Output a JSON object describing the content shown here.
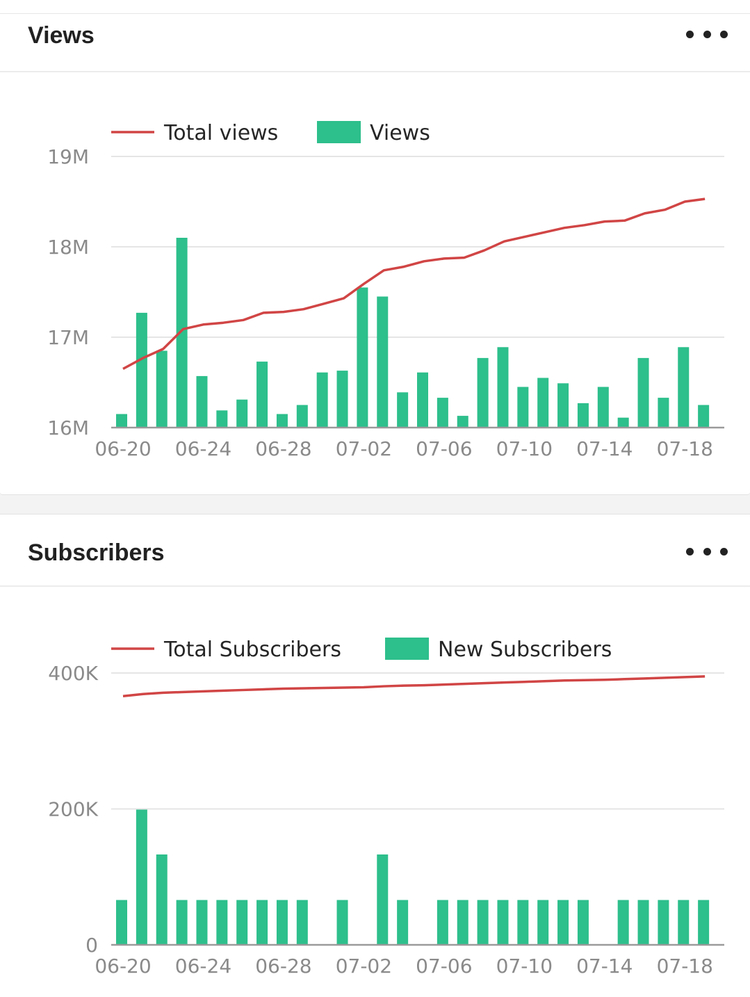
{
  "views_card": {
    "title": "Views",
    "more_label": "More options"
  },
  "subscribers_card": {
    "title": "Subscribers",
    "more_label": "More options"
  },
  "colors": {
    "line": "#d14545",
    "bar": "#2dbf8c",
    "grid": "#e5e5e5",
    "axis": "#9a9a9a"
  },
  "chart_data": [
    {
      "type": "bar",
      "legend": [
        "Total views",
        "Views"
      ],
      "x": [
        "06-20",
        "06-21",
        "06-22",
        "06-23",
        "06-24",
        "06-25",
        "06-26",
        "06-27",
        "06-28",
        "06-29",
        "06-30",
        "07-01",
        "07-02",
        "07-03",
        "07-04",
        "07-05",
        "07-06",
        "07-07",
        "07-08",
        "07-09",
        "07-10",
        "07-11",
        "07-12",
        "07-13",
        "07-14",
        "07-15",
        "07-16",
        "07-17",
        "07-18",
        "07-19"
      ],
      "x_ticks": [
        "06-20",
        "06-24",
        "06-28",
        "07-02",
        "07-06",
        "07-10",
        "07-14",
        "07-18"
      ],
      "y_ticks": [
        "16M",
        "17M",
        "18M",
        "19M"
      ],
      "ylim": [
        16000000,
        19000000
      ],
      "series": [
        {
          "name": "Views",
          "kind": "bar",
          "values": [
            16150000,
            17270000,
            16850000,
            18100000,
            16570000,
            16190000,
            16310000,
            16730000,
            16150000,
            16250000,
            16610000,
            16630000,
            17550000,
            17450000,
            16390000,
            16610000,
            16330000,
            16130000,
            16770000,
            16890000,
            16450000,
            16550000,
            16490000,
            16270000,
            16450000,
            16110000,
            16770000,
            16330000,
            16890000,
            16250000
          ]
        },
        {
          "name": "Total views",
          "kind": "line",
          "values": [
            16650000,
            16770000,
            16870000,
            17090000,
            17140000,
            17160000,
            17190000,
            17270000,
            17280000,
            17310000,
            17370000,
            17430000,
            17590000,
            17740000,
            17780000,
            17840000,
            17870000,
            17880000,
            17960000,
            18060000,
            18110000,
            18160000,
            18210000,
            18240000,
            18280000,
            18290000,
            18370000,
            18410000,
            18500000,
            18530000
          ]
        }
      ]
    },
    {
      "type": "bar",
      "legend": [
        "Total Subscribers",
        "New Subscribers"
      ],
      "x": [
        "06-20",
        "06-21",
        "06-22",
        "06-23",
        "06-24",
        "06-25",
        "06-26",
        "06-27",
        "06-28",
        "06-29",
        "06-30",
        "07-01",
        "07-02",
        "07-03",
        "07-04",
        "07-05",
        "07-06",
        "07-07",
        "07-08",
        "07-09",
        "07-10",
        "07-11",
        "07-12",
        "07-13",
        "07-14",
        "07-15",
        "07-16",
        "07-17",
        "07-18",
        "07-19"
      ],
      "x_ticks": [
        "06-20",
        "06-24",
        "06-28",
        "07-02",
        "07-06",
        "07-10",
        "07-14",
        "07-18"
      ],
      "y_ticks": [
        "0",
        "200K",
        "400K"
      ],
      "ylim": [
        0,
        400000
      ],
      "series": [
        {
          "name": "New Subscribers",
          "kind": "bar",
          "values": [
            66000,
            199000,
            133000,
            66000,
            66000,
            66000,
            66000,
            66000,
            66000,
            66000,
            0,
            66000,
            0,
            133000,
            66000,
            0,
            66000,
            66000,
            66000,
            66000,
            66000,
            66000,
            66000,
            66000,
            0,
            66000,
            66000,
            66000,
            66000,
            66000
          ]
        },
        {
          "name": "Total Subscribers",
          "kind": "line",
          "values": [
            366000,
            369000,
            371000,
            372000,
            373000,
            374000,
            375000,
            376000,
            377000,
            377500,
            378000,
            378500,
            379000,
            380500,
            381500,
            382000,
            383000,
            384000,
            385000,
            386000,
            387000,
            388000,
            389000,
            389500,
            390000,
            391000,
            392000,
            393000,
            394000,
            395000
          ]
        }
      ]
    }
  ]
}
